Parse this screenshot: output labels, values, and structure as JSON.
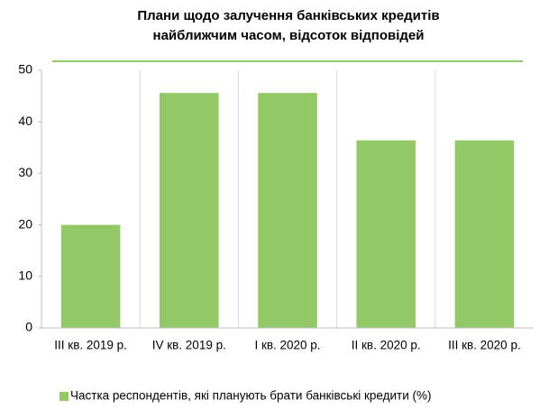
{
  "chart_data": {
    "type": "bar",
    "title": [
      "Плани щодо залучення банківських кредитів",
      "найближчим часом, відсоток відповідей"
    ],
    "categories": [
      "III кв. 2019 р.",
      "IV кв. 2019 р.",
      "I кв. 2020 р.",
      "II кв. 2020 р.",
      "III кв. 2020 р."
    ],
    "series": [
      {
        "name": "Частка респондентів, які планують брати банківські кредити (%)",
        "color": "#92c865",
        "values": [
          20,
          45.6,
          45.6,
          36.4,
          36.4
        ]
      }
    ],
    "ylim": [
      0,
      50
    ],
    "yticks": [
      0,
      10,
      20,
      30,
      40,
      50
    ],
    "legend": "bottom"
  }
}
